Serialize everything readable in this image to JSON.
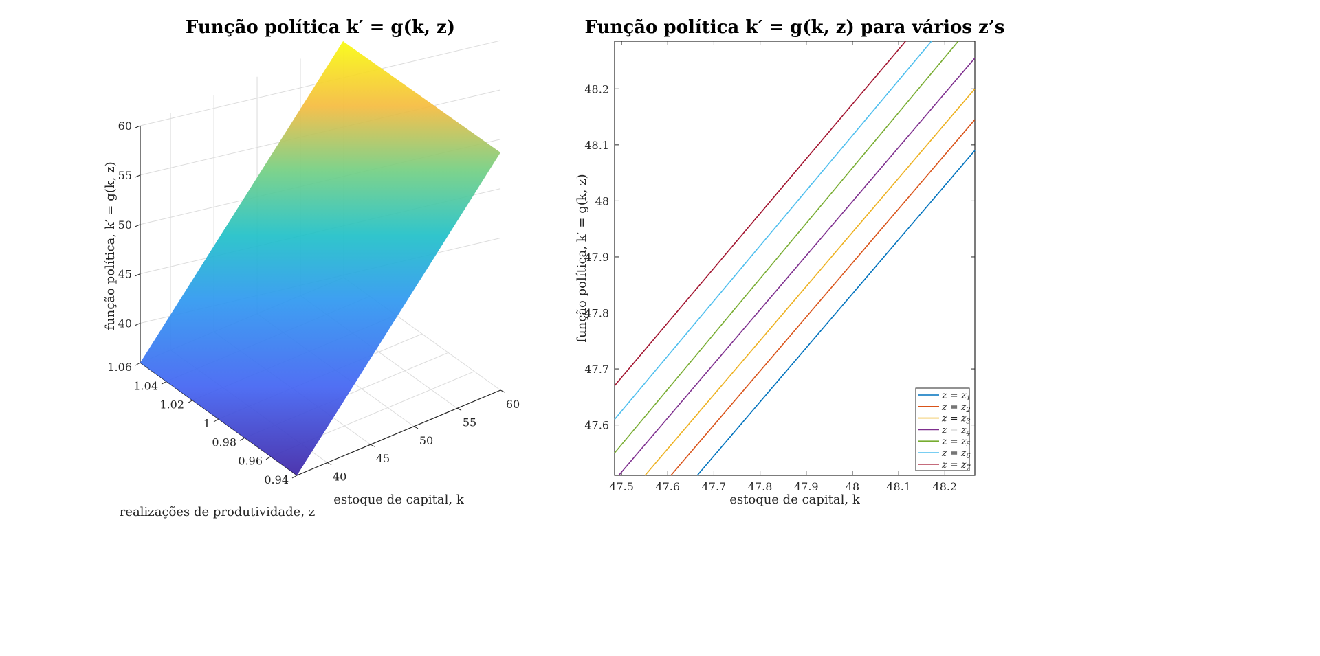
{
  "chart_data": [
    {
      "type": "surface",
      "title": "Função política k′ = g(k, z)",
      "xlabel": "estoque de capital, k",
      "ylabel": "realizações de produtividade, z",
      "zlabel": "função política, k′ = g(k, z)",
      "x_range": [
        36.5,
        60
      ],
      "y_range": [
        0.94,
        1.06
      ],
      "z_range": [
        36,
        60
      ],
      "x_ticks": [
        "40",
        "45",
        "50",
        "55",
        "60"
      ],
      "y_ticks": [
        "0.94",
        "0.96",
        "0.98",
        "1",
        "1.02",
        "1.04",
        "1.06"
      ],
      "z_ticks": [
        "40",
        "45",
        "50",
        "55",
        "60"
      ],
      "corners": [
        {
          "k": 36.5,
          "z": 0.94,
          "g": 36.5
        },
        {
          "k": 36.5,
          "z": 1.06,
          "g": 36.7
        },
        {
          "k": 60,
          "z": 1.06,
          "g": 60
        },
        {
          "k": 60,
          "z": 0.94,
          "g": 59.8
        }
      ],
      "colormap": "parula",
      "grid": true
    },
    {
      "type": "line",
      "title": "Função política k′ = g(k, z) para vários z’s",
      "xlabel": "estoque de capital, k",
      "ylabel": "função política, k′ = g(k, z)",
      "xlim": [
        47.485,
        48.265
      ],
      "ylim": [
        47.51,
        48.285
      ],
      "x_ticks": [
        "47.5",
        "47.6",
        "47.7",
        "47.8",
        "47.9",
        "48",
        "48.1",
        "48.2"
      ],
      "y_ticks": [
        "47.6",
        "47.7",
        "47.8",
        "47.9",
        "48",
        "48.1",
        "48.2"
      ],
      "legend_position": "bottom-right",
      "series": [
        {
          "name": "z = z1",
          "sub": "1",
          "color": "#0072BD",
          "x": [
            47.664,
            48.265
          ],
          "y": [
            47.51,
            48.09
          ]
        },
        {
          "name": "z = z2",
          "sub": "2",
          "color": "#D95319",
          "x": [
            47.607,
            48.265
          ],
          "y": [
            47.51,
            48.145
          ]
        },
        {
          "name": "z = z3",
          "sub": "3",
          "color": "#EDB120",
          "x": [
            47.551,
            48.265
          ],
          "y": [
            47.51,
            48.2
          ]
        },
        {
          "name": "z = z4",
          "sub": "4",
          "color": "#7E2F8E",
          "x": [
            47.494,
            48.265
          ],
          "y": [
            47.51,
            48.255
          ]
        },
        {
          "name": "z = z5",
          "sub": "5",
          "color": "#77AC30",
          "x": [
            47.485,
            48.229
          ],
          "y": [
            47.55,
            48.285
          ]
        },
        {
          "name": "z = z6",
          "sub": "6",
          "color": "#4DBEEE",
          "x": [
            47.485,
            48.171
          ],
          "y": [
            47.61,
            48.285
          ]
        },
        {
          "name": "z = z7",
          "sub": "7",
          "color": "#A2142F",
          "x": [
            47.485,
            48.115
          ],
          "y": [
            47.67,
            48.285
          ]
        }
      ]
    }
  ]
}
